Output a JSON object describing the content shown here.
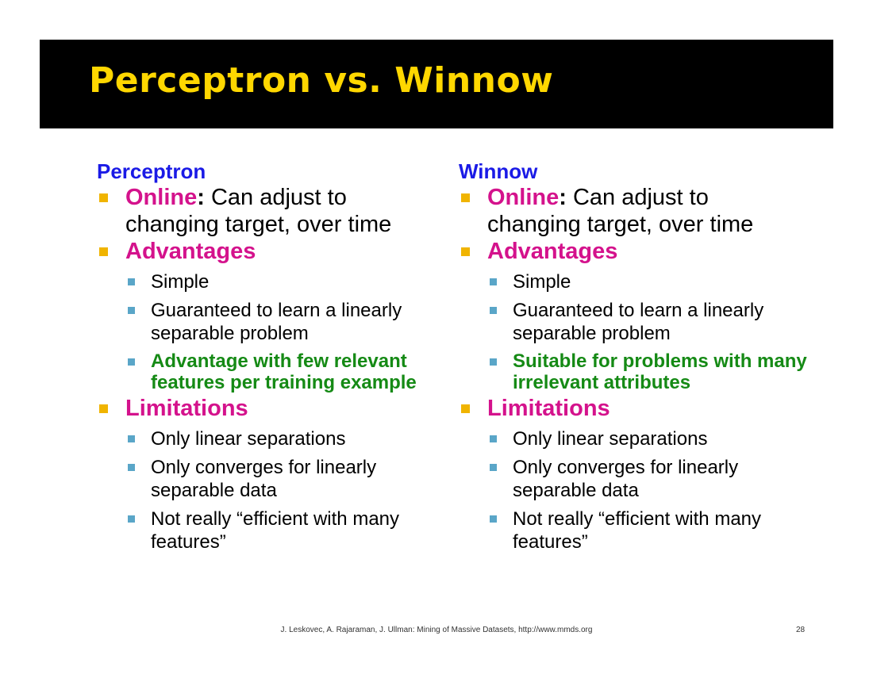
{
  "title": "Perceptron vs. Winnow",
  "left": {
    "heading": "Perceptron",
    "online_kw": "Online",
    "online_colon": ":",
    "online_text": " Can adjust to changing target, over time",
    "advantages_kw": "Advantages",
    "advantages": [
      "Simple",
      "Guaranteed to learn a linearly separable problem"
    ],
    "advantage_highlight": "Advantage with few relevant features per training example",
    "limitations_kw": "Limitations",
    "limitations": [
      "Only linear separations",
      "Only converges for linearly separable data",
      "Not really “efficient with many features”"
    ]
  },
  "right": {
    "heading": "Winnow",
    "online_kw": "Online",
    "online_colon": ":",
    "online_text": " Can adjust to changing target, over time",
    "advantages_kw": "Advantages",
    "advantages": [
      "Simple",
      "Guaranteed to learn a linearly separable problem"
    ],
    "advantage_highlight": "Suitable for problems with many irrelevant attributes",
    "limitations_kw": "Limitations",
    "limitations": [
      "Only linear separations",
      "Only converges for linearly separable data",
      "Not really “efficient with many features”"
    ]
  },
  "footer": "J. Leskovec, A. Rajaraman, J. Ullman: Mining of Massive Datasets, http://www.mmds.org",
  "page_number": "28",
  "colors": {
    "title": "#ffd700",
    "heading": "#1a1ae6",
    "keyword": "#d4128c",
    "highlight": "#158a15",
    "bullet_l1": "#f0b400",
    "bullet_l2": "#5aa6c8"
  }
}
